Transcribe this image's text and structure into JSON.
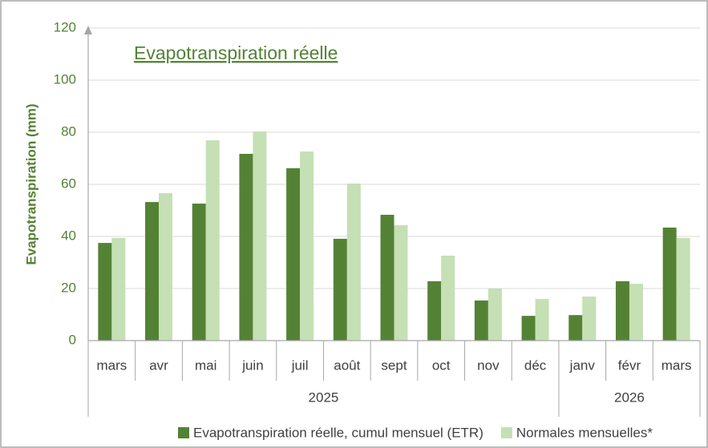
{
  "chart_data": {
    "type": "bar",
    "title": "Evapotranspiration réelle",
    "y_label": "Evapotranspiration (mm)",
    "categories": [
      "mars",
      "avr",
      "mai",
      "juin",
      "juil",
      "août",
      "sept",
      "oct",
      "nov",
      "déc",
      "janv",
      "févr",
      "mars"
    ],
    "category_groups": [
      {
        "label": "2025",
        "size": 10
      },
      {
        "label": "2026",
        "size": 3
      }
    ],
    "series": [
      {
        "name": "Evapotranspiration réelle, cumul mensuel (ETR)",
        "color": "#548235",
        "values": [
          37.5,
          53.2,
          52.6,
          71.7,
          66.2,
          39.1,
          48.3,
          22.8,
          15.4,
          9.5,
          9.8,
          22.8,
          43.4
        ]
      },
      {
        "name": "Normales mensuelles*",
        "color": "#c5e0b4",
        "values": [
          39.4,
          56.6,
          76.9,
          80.3,
          72.6,
          60.3,
          44.3,
          32.6,
          20.0,
          16.0,
          16.9,
          21.8,
          39.4
        ]
      }
    ],
    "ylim": [
      0,
      120
    ],
    "yticks": [
      0,
      20,
      40,
      60,
      80,
      100,
      120
    ],
    "grid": true,
    "legend": "bottom"
  }
}
